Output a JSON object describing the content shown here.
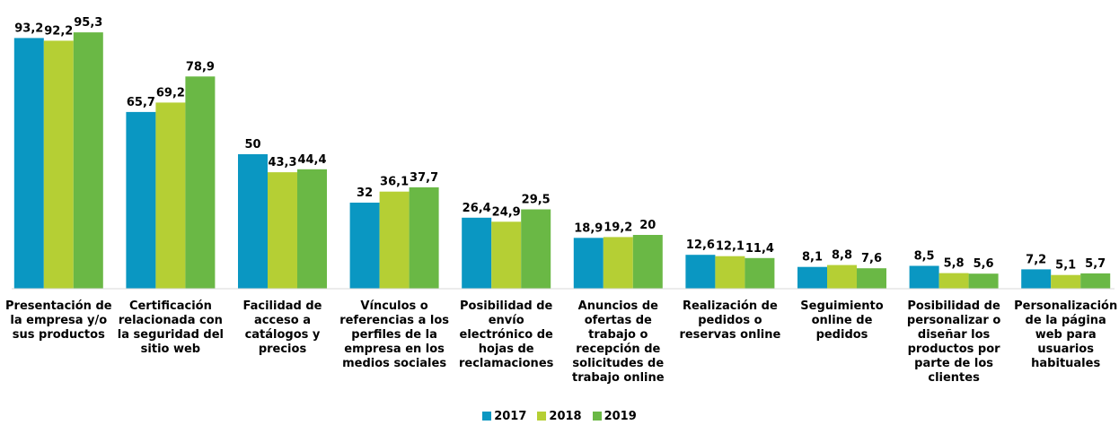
{
  "chart_data": {
    "type": "bar",
    "categories": [
      "Presentación de la empresa y/o sus productos",
      "Certificación relacionada con la seguridad del sitio web",
      "Facilidad de acceso a catálogos y precios",
      "Vínculos o referencias a los perfiles de la empresa en los medios sociales",
      "Posibilidad de envío electrónico de hojas de reclamaciones",
      "Anuncios de ofertas de trabajo o recepción de solicitudes de trabajo online",
      "Realización de pedidos o reservas online",
      "Seguimiento online de pedidos",
      "Posibilidad de personalizar o diseñar los productos por parte de los clientes",
      "Personalización de la página web para usuarios habituales"
    ],
    "series": [
      {
        "name": "2017",
        "color": "#0a97c2",
        "values": [
          93.2,
          65.7,
          50,
          32,
          26.4,
          18.9,
          12.6,
          8.1,
          8.5,
          7.2
        ],
        "value_labels": [
          "93,2",
          "65,7",
          "50",
          "32",
          "26,4",
          "18,9",
          "12,6",
          "8,1",
          "8,5",
          "7,2"
        ]
      },
      {
        "name": "2018",
        "color": "#b5cf34",
        "values": [
          92.2,
          69.2,
          43.3,
          36.1,
          24.9,
          19.2,
          12.1,
          8.8,
          5.8,
          5.1
        ],
        "value_labels": [
          "92,2",
          "69,2",
          "43,3",
          "36,1",
          "24,9",
          "19,2",
          "12,1",
          "8,8",
          "5,8",
          "5,1"
        ]
      },
      {
        "name": "2019",
        "color": "#6ab845",
        "values": [
          95.3,
          78.9,
          44.4,
          37.7,
          29.5,
          20,
          11.4,
          7.6,
          5.6,
          5.7
        ],
        "value_labels": [
          "95,3",
          "78,9",
          "44,4",
          "37,7",
          "29,5",
          "20",
          "11,4",
          "7,6",
          "5,6",
          "5,7"
        ]
      }
    ],
    "ylim": [
      0,
      100
    ],
    "legend": "bottom"
  }
}
